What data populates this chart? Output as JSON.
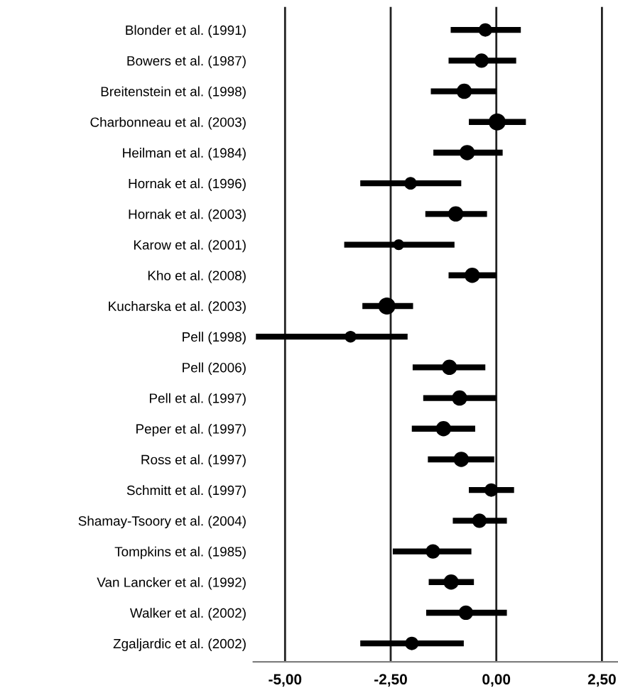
{
  "chart_data": {
    "type": "bubble",
    "orientation": "horizontal",
    "categories": [
      "Blonder et al. (1991)",
      "Bowers et al. (1987)",
      "Breitenstein et al. (1998)",
      "Charbonneau et al. (2003)",
      "Heilman et al. (1984)",
      "Hornak et al. (1996)",
      "Hornak et al. (2003)",
      "Karow et al. (2001)",
      "Kho et al. (2008)",
      "Kucharska et al. (2003)",
      "Pell (1998)",
      "Pell (2006)",
      "Pell et al. (1997)",
      "Peper et al. (1997)",
      "Ross et al. (1997)",
      "Schmitt et al. (1997)",
      "Shamay-Tsoory et al. (2004)",
      "Tompkins et al. (1985)",
      "Van Lancker et al. (1992)",
      "Walker et al. (2002)",
      "Zgaljardic et al. (2002)"
    ],
    "values": [
      -0.26,
      -0.35,
      -0.76,
      0.02,
      -0.69,
      -2.03,
      -0.96,
      -2.31,
      -0.57,
      -2.59,
      -3.45,
      -1.11,
      -0.87,
      -1.25,
      -0.83,
      -0.12,
      -0.4,
      -1.5,
      -1.07,
      -0.72,
      -2.0
    ],
    "errors": [
      [
        -1.08,
        0.58
      ],
      [
        -1.13,
        0.47
      ],
      [
        -1.55,
        0.0
      ],
      [
        -0.65,
        0.7
      ],
      [
        -1.49,
        0.15
      ],
      [
        -3.22,
        -0.83
      ],
      [
        -1.68,
        -0.22
      ],
      [
        -3.6,
        -0.99
      ],
      [
        -1.13,
        0.0
      ],
      [
        -3.17,
        -1.97
      ],
      [
        -5.69,
        -2.1
      ],
      [
        -1.98,
        -0.26
      ],
      [
        -1.73,
        0.0
      ],
      [
        -2.0,
        -0.5
      ],
      [
        -1.62,
        -0.05
      ],
      [
        -0.65,
        0.42
      ],
      [
        -1.03,
        0.25
      ],
      [
        -2.45,
        -0.59
      ],
      [
        -1.6,
        -0.53
      ],
      [
        -1.66,
        0.25
      ],
      [
        -3.22,
        -0.77
      ]
    ],
    "sizes": [
      0.62,
      0.71,
      0.8,
      1,
      0.8,
      0.54,
      0.8,
      0.4,
      0.8,
      1,
      0.47,
      0.8,
      0.8,
      0.8,
      0.8,
      0.62,
      0.71,
      0.71,
      0.8,
      0.71,
      0.62
    ],
    "color": "#000000",
    "xlim": [
      -5.75,
      2.88
    ],
    "xticks": [
      {
        "value": -5,
        "label": "-5,00"
      },
      {
        "value": -2.5,
        "label": "-2,50"
      },
      {
        "value": 0,
        "label": "0,00"
      },
      {
        "value": 2.5,
        "label": "2,50"
      }
    ],
    "grid": "x"
  }
}
